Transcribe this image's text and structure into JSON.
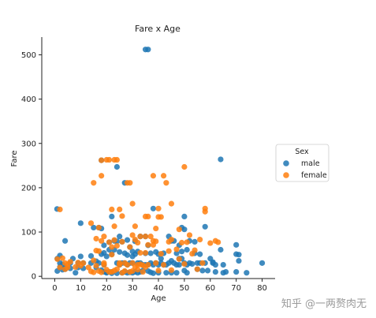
{
  "chart_data": {
    "type": "scatter",
    "title": "Fare x Age",
    "xlabel": "Age",
    "ylabel": "Fare",
    "xlim": [
      -5,
      85
    ],
    "ylim": [
      -5,
      540
    ],
    "xticks": [
      0,
      10,
      20,
      30,
      40,
      50,
      60,
      70,
      80
    ],
    "yticks": [
      0,
      100,
      200,
      300,
      400,
      500
    ],
    "grid": false,
    "legend": {
      "title": "Sex",
      "placement": "right"
    },
    "series": [
      {
        "name": "male",
        "color": "#1f77b4",
        "points": [
          [
            0.9,
            152
          ],
          [
            1,
            12
          ],
          [
            1,
            40
          ],
          [
            2,
            47
          ],
          [
            2,
            30
          ],
          [
            2,
            21
          ],
          [
            3,
            15
          ],
          [
            3,
            27
          ],
          [
            4,
            80
          ],
          [
            4,
            20
          ],
          [
            4,
            16
          ],
          [
            6,
            30
          ],
          [
            6,
            18
          ],
          [
            7,
            40
          ],
          [
            8,
            8
          ],
          [
            9,
            30
          ],
          [
            9,
            20
          ],
          [
            10,
            120
          ],
          [
            10,
            45
          ],
          [
            11,
            30
          ],
          [
            11,
            18
          ],
          [
            14,
            46
          ],
          [
            14,
            30
          ],
          [
            15,
            110
          ],
          [
            16,
            20
          ],
          [
            16,
            34
          ],
          [
            17,
            30
          ],
          [
            17,
            110
          ],
          [
            18,
            262
          ],
          [
            18,
            108
          ],
          [
            18,
            50
          ],
          [
            18,
            14
          ],
          [
            19,
            70
          ],
          [
            19,
            53
          ],
          [
            19,
            26
          ],
          [
            19,
            10
          ],
          [
            20,
            8
          ],
          [
            20,
            45
          ],
          [
            20,
            9
          ],
          [
            21,
            77
          ],
          [
            21,
            10
          ],
          [
            21,
            60
          ],
          [
            22,
            135
          ],
          [
            22,
            50
          ],
          [
            22,
            10
          ],
          [
            22,
            7
          ],
          [
            23,
            60
          ],
          [
            23,
            80
          ],
          [
            24,
            247
          ],
          [
            24,
            79
          ],
          [
            24,
            7
          ],
          [
            24,
            30
          ],
          [
            25,
            26
          ],
          [
            25,
            55
          ],
          [
            25,
            90
          ],
          [
            26,
            78
          ],
          [
            26,
            30
          ],
          [
            26,
            8
          ],
          [
            27,
            211
          ],
          [
            27,
            30
          ],
          [
            27,
            10
          ],
          [
            27,
            52
          ],
          [
            28,
            82
          ],
          [
            28,
            26
          ],
          [
            28,
            8
          ],
          [
            28,
            48
          ],
          [
            29,
            66
          ],
          [
            29,
            30
          ],
          [
            29,
            9
          ],
          [
            30,
            8
          ],
          [
            30,
            30
          ],
          [
            30,
            45
          ],
          [
            30,
            56
          ],
          [
            31,
            50
          ],
          [
            31,
            79
          ],
          [
            31,
            10
          ],
          [
            32,
            56
          ],
          [
            32,
            30
          ],
          [
            32,
            8
          ],
          [
            33,
            90
          ],
          [
            33,
            30
          ],
          [
            33,
            10
          ],
          [
            34,
            26
          ],
          [
            34,
            13
          ],
          [
            35,
            512
          ],
          [
            35,
            52
          ],
          [
            35,
            90
          ],
          [
            35,
            26
          ],
          [
            36,
            512
          ],
          [
            36,
            70
          ],
          [
            36,
            26
          ],
          [
            36,
            12
          ],
          [
            37,
            52
          ],
          [
            37,
            30
          ],
          [
            37,
            9
          ],
          [
            38,
            153
          ],
          [
            38,
            26
          ],
          [
            38,
            7
          ],
          [
            39,
            55
          ],
          [
            39,
            30
          ],
          [
            40,
            50
          ],
          [
            40,
            26
          ],
          [
            40,
            8
          ],
          [
            41,
            40
          ],
          [
            41,
            30
          ],
          [
            42,
            52
          ],
          [
            42,
            26
          ],
          [
            43,
            26
          ],
          [
            43,
            8
          ],
          [
            44,
            90
          ],
          [
            44,
            30
          ],
          [
            45,
            80
          ],
          [
            45,
            35
          ],
          [
            45,
            8
          ],
          [
            46,
            80
          ],
          [
            46,
            30
          ],
          [
            47,
            52
          ],
          [
            47,
            26
          ],
          [
            47,
            8
          ],
          [
            48,
            70
          ],
          [
            48,
            40
          ],
          [
            48,
            26
          ],
          [
            49,
            56
          ],
          [
            49,
            110
          ],
          [
            49,
            40
          ],
          [
            50,
            135
          ],
          [
            50,
            106
          ],
          [
            50,
            30
          ],
          [
            50,
            13
          ],
          [
            51,
            60
          ],
          [
            51,
            26
          ],
          [
            51,
            8
          ],
          [
            52,
            80
          ],
          [
            52,
            30
          ],
          [
            53,
            28
          ],
          [
            54,
            78
          ],
          [
            54,
            52
          ],
          [
            55,
            30
          ],
          [
            55,
            16
          ],
          [
            56,
            30
          ],
          [
            56,
            50
          ],
          [
            57,
            13
          ],
          [
            58,
            112
          ],
          [
            58,
            30
          ],
          [
            59,
            13
          ],
          [
            60,
            40
          ],
          [
            61,
            30
          ],
          [
            61,
            32
          ],
          [
            62,
            10
          ],
          [
            62,
            26
          ],
          [
            64,
            264
          ],
          [
            64,
            60
          ],
          [
            65,
            26
          ],
          [
            65,
            8
          ],
          [
            66,
            10
          ],
          [
            70,
            71
          ],
          [
            70,
            10
          ],
          [
            70,
            50
          ],
          [
            71,
            35
          ],
          [
            71,
            49
          ],
          [
            74,
            8
          ],
          [
            80,
            30
          ]
        ]
      },
      {
        "name": "female",
        "color": "#ff7f0e",
        "points": [
          [
            1,
            39
          ],
          [
            2,
            151
          ],
          [
            2,
            20
          ],
          [
            3,
            41
          ],
          [
            4,
            16
          ],
          [
            4,
            30
          ],
          [
            5,
            27
          ],
          [
            5,
            20
          ],
          [
            6,
            33
          ],
          [
            8,
            21
          ],
          [
            9,
            31
          ],
          [
            10,
            24
          ],
          [
            11,
            30
          ],
          [
            13,
            20
          ],
          [
            14,
            120
          ],
          [
            14,
            11
          ],
          [
            15,
            211
          ],
          [
            15,
            36
          ],
          [
            15,
            9
          ],
          [
            16,
            85
          ],
          [
            16,
            58
          ],
          [
            16,
            24
          ],
          [
            17,
            110
          ],
          [
            17,
            57
          ],
          [
            17,
            12
          ],
          [
            18,
            262
          ],
          [
            18,
            227
          ],
          [
            18,
            80
          ],
          [
            18,
            9
          ],
          [
            19,
            90
          ],
          [
            19,
            30
          ],
          [
            19,
            26
          ],
          [
            20,
            263
          ],
          [
            20,
            15
          ],
          [
            21,
            263
          ],
          [
            21,
            77
          ],
          [
            21,
            10
          ],
          [
            22,
            151
          ],
          [
            22,
            66
          ],
          [
            22,
            49
          ],
          [
            22,
            10
          ],
          [
            23,
            263
          ],
          [
            23,
            113
          ],
          [
            23,
            82
          ],
          [
            23,
            13
          ],
          [
            24,
            263
          ],
          [
            24,
            69
          ],
          [
            24,
            16
          ],
          [
            25,
            151
          ],
          [
            25,
            30
          ],
          [
            25,
            26
          ],
          [
            26,
            136
          ],
          [
            26,
            78
          ],
          [
            26,
            8
          ],
          [
            27,
            30
          ],
          [
            27,
            12
          ],
          [
            28,
            211
          ],
          [
            28,
            26
          ],
          [
            29,
            211
          ],
          [
            29,
            66
          ],
          [
            29,
            10
          ],
          [
            30,
            164
          ],
          [
            30,
            93
          ],
          [
            30,
            30
          ],
          [
            30,
            12
          ],
          [
            31,
            113
          ],
          [
            31,
            83
          ],
          [
            31,
            21
          ],
          [
            32,
            76
          ],
          [
            32,
            26
          ],
          [
            32,
            15
          ],
          [
            33,
            90
          ],
          [
            33,
            53
          ],
          [
            33,
            27
          ],
          [
            34,
            25
          ],
          [
            34,
            10
          ],
          [
            35,
            135
          ],
          [
            35,
            90
          ],
          [
            35,
            53
          ],
          [
            35,
            21
          ],
          [
            36,
            135
          ],
          [
            36,
            71
          ],
          [
            36,
            26
          ],
          [
            37,
            90
          ],
          [
            38,
            227
          ],
          [
            38,
            80
          ],
          [
            38,
            71
          ],
          [
            39,
            108
          ],
          [
            39,
            79
          ],
          [
            39,
            30
          ],
          [
            40,
            153
          ],
          [
            40,
            134
          ],
          [
            40,
            13
          ],
          [
            41,
            134
          ],
          [
            41,
            51
          ],
          [
            42,
            227
          ],
          [
            42,
            26
          ],
          [
            43,
            211
          ],
          [
            44,
            78
          ],
          [
            44,
            57
          ],
          [
            45,
            164
          ],
          [
            45,
            83
          ],
          [
            45,
            14
          ],
          [
            47,
            61
          ],
          [
            48,
            106
          ],
          [
            48,
            39
          ],
          [
            49,
            76
          ],
          [
            50,
            247
          ],
          [
            50,
            28
          ],
          [
            51,
            77
          ],
          [
            52,
            93
          ],
          [
            53,
            51
          ],
          [
            54,
            59
          ],
          [
            55,
            16
          ],
          [
            56,
            83
          ],
          [
            57,
            30
          ],
          [
            58,
            153
          ],
          [
            58,
            146
          ],
          [
            60,
            75
          ],
          [
            62,
            80
          ],
          [
            63,
            77
          ]
        ]
      }
    ]
  },
  "watermark": "知乎 @一两赘肉无"
}
